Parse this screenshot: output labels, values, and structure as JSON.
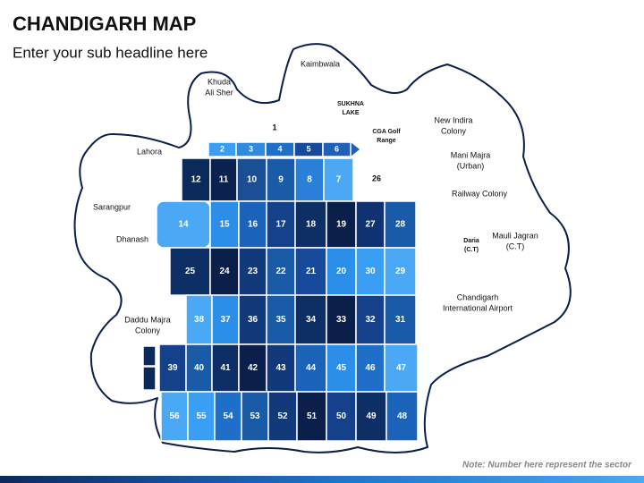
{
  "header": {
    "title": "CHANDIGARH MAP",
    "subtitle": "Enter your sub headline here"
  },
  "sectors": [
    {
      "label": "2",
      "color": "#3a9ef5"
    },
    {
      "label": "3",
      "color": "#2f8ae0"
    },
    {
      "label": "4",
      "color": "#1f6fc9"
    },
    {
      "label": "5",
      "color": "#174a9a"
    },
    {
      "label": "6",
      "color": "#1f5fb5"
    },
    {
      "label": "12",
      "color": "#0b2a5c"
    },
    {
      "label": "11",
      "color": "#0b2250"
    },
    {
      "label": "10",
      "color": "#1b4f94"
    },
    {
      "label": "9",
      "color": "#1a5ba8"
    },
    {
      "label": "8",
      "color": "#2a7fd8"
    },
    {
      "label": "7",
      "color": "#4aa8f5"
    },
    {
      "label": "14",
      "color": "#4aa8f5"
    },
    {
      "label": "15",
      "color": "#2b8ee8"
    },
    {
      "label": "16",
      "color": "#1a63b8"
    },
    {
      "label": "17",
      "color": "#15418a"
    },
    {
      "label": "18",
      "color": "#0e2e66"
    },
    {
      "label": "19",
      "color": "#0a1f4a"
    },
    {
      "label": "27",
      "color": "#0f3370"
    },
    {
      "label": "28",
      "color": "#1a5ba8"
    },
    {
      "label": "25",
      "color": "#0e2e66"
    },
    {
      "label": "24",
      "color": "#0a1f4a"
    },
    {
      "label": "23",
      "color": "#123a7a"
    },
    {
      "label": "22",
      "color": "#1a5ba8"
    },
    {
      "label": "21",
      "color": "#174a9a"
    },
    {
      "label": "20",
      "color": "#2b8ee8"
    },
    {
      "label": "30",
      "color": "#3a9ef5"
    },
    {
      "label": "29",
      "color": "#4aa8f5"
    },
    {
      "label": "38",
      "color": "#4aa8f5"
    },
    {
      "label": "37",
      "color": "#2b8ee8"
    },
    {
      "label": "36",
      "color": "#123a7a"
    },
    {
      "label": "35",
      "color": "#1a5ba8"
    },
    {
      "label": "34",
      "color": "#0e2e66"
    },
    {
      "label": "33",
      "color": "#0a1f4a"
    },
    {
      "label": "32",
      "color": "#15418a"
    },
    {
      "label": "31",
      "color": "#1a5ba8"
    },
    {
      "label": "39",
      "color": "#15418a"
    },
    {
      "label": "40",
      "color": "#1a5ba8"
    },
    {
      "label": "41",
      "color": "#0e2e66"
    },
    {
      "label": "42",
      "color": "#0a1f4a"
    },
    {
      "label": "43",
      "color": "#123a7a"
    },
    {
      "label": "44",
      "color": "#1a63b8"
    },
    {
      "label": "45",
      "color": "#2b8ee8"
    },
    {
      "label": "46",
      "color": "#1f6fc9"
    },
    {
      "label": "47",
      "color": "#4aa8f5"
    },
    {
      "label": "56",
      "color": "#4aa8f5"
    },
    {
      "label": "55",
      "color": "#3a9ef5"
    },
    {
      "label": "54",
      "color": "#1f6fc9"
    },
    {
      "label": "53",
      "color": "#1a5ba8"
    },
    {
      "label": "52",
      "color": "#123a7a"
    },
    {
      "label": "51",
      "color": "#0a1f4a"
    },
    {
      "label": "50",
      "color": "#15418a"
    },
    {
      "label": "49",
      "color": "#0e2e66"
    },
    {
      "label": "48",
      "color": "#1a63b8"
    }
  ],
  "places": [
    {
      "lines": [
        "Kaimbwala"
      ]
    },
    {
      "lines": [
        "Khuda",
        "Ali Sher"
      ]
    },
    {
      "lines": [
        "SUKHNA",
        "LAKE"
      ]
    },
    {
      "lines": [
        "1"
      ]
    },
    {
      "lines": [
        "CGA Golf",
        "Range"
      ]
    },
    {
      "lines": [
        "New Indira",
        "Colony"
      ]
    },
    {
      "lines": [
        "Lahora"
      ]
    },
    {
      "lines": [
        "Mani Majra",
        "(Urban)"
      ]
    },
    {
      "lines": [
        "26"
      ]
    },
    {
      "lines": [
        "Railway Colony"
      ]
    },
    {
      "lines": [
        "Sarangpur"
      ]
    },
    {
      "lines": [
        "Dhanash"
      ]
    },
    {
      "lines": [
        "Daria",
        "(C.T)"
      ]
    },
    {
      "lines": [
        "Mauli Jagran",
        "(C.T)"
      ]
    },
    {
      "lines": [
        "Chandigarh",
        "International Airport"
      ]
    },
    {
      "lines": [
        "Daddu Majra",
        "Colony"
      ]
    }
  ],
  "note": "Note: Number here represent the sector"
}
